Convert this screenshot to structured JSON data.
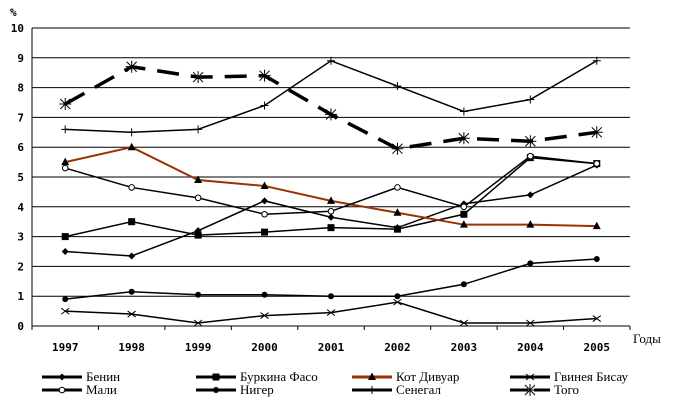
{
  "chart_data": {
    "type": "line",
    "title": "",
    "ylabel": "%",
    "xlabel": "Годы",
    "ylim": [
      0,
      10
    ],
    "yticks": [
      "0",
      "1",
      "2",
      "3",
      "4",
      "5",
      "6",
      "7",
      "8",
      "9",
      "10"
    ],
    "categories": [
      "1997",
      "1998",
      "1999",
      "2000",
      "2001",
      "2002",
      "2003",
      "2004",
      "2005"
    ],
    "grid": true,
    "legend_position": "bottom",
    "series": [
      {
        "name": "Бенин",
        "marker": "diamond",
        "color": "#000000",
        "dash": false,
        "values": [
          2.5,
          2.35,
          3.2,
          4.2,
          3.65,
          3.3,
          4.1,
          4.4,
          5.4
        ]
      },
      {
        "name": "Буркина Фасо",
        "marker": "square",
        "color": "#000000",
        "dash": false,
        "values": [
          3.0,
          3.5,
          3.05,
          3.15,
          3.3,
          3.25,
          3.75,
          5.65,
          5.45
        ]
      },
      {
        "name": "Кот Дивуар",
        "marker": "triangle",
        "color": "#993300",
        "dash": false,
        "values": [
          5.5,
          6.0,
          4.9,
          4.7,
          4.2,
          3.8,
          3.4,
          3.4,
          3.35
        ]
      },
      {
        "name": "Гвинея Бисау",
        "marker": "x",
        "color": "#000000",
        "dash": false,
        "values": [
          0.5,
          0.4,
          0.1,
          0.35,
          0.45,
          0.8,
          0.1,
          0.1,
          0.25
        ]
      },
      {
        "name": "Мали",
        "marker": "circle-open",
        "color": "#000000",
        "dash": false,
        "values": [
          5.3,
          4.65,
          4.3,
          3.75,
          3.85,
          4.65,
          4.0,
          5.7,
          5.45
        ]
      },
      {
        "name": "Нигер",
        "marker": "dot",
        "color": "#000000",
        "dash": false,
        "values": [
          0.9,
          1.15,
          1.05,
          1.05,
          1.0,
          1.0,
          1.4,
          2.1,
          2.25
        ]
      },
      {
        "name": "Сенегал",
        "marker": "plus",
        "color": "#000000",
        "dash": false,
        "values": [
          6.6,
          6.5,
          6.6,
          7.4,
          8.9,
          8.05,
          7.2,
          7.6,
          8.9
        ]
      },
      {
        "name": "Того",
        "marker": "asterisk",
        "color": "#000000",
        "dash": true,
        "values": [
          7.45,
          8.7,
          8.35,
          8.4,
          7.1,
          5.95,
          6.3,
          6.2,
          6.5
        ]
      }
    ]
  }
}
